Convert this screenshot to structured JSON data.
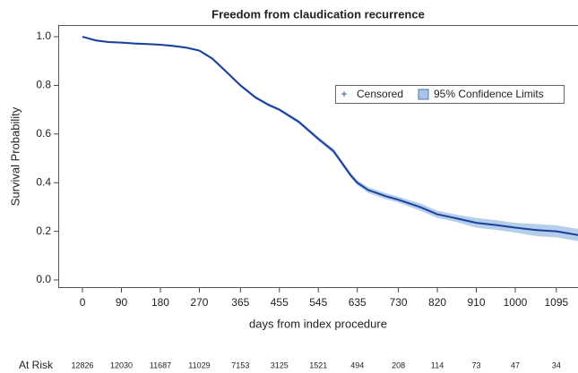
{
  "chart_data": {
    "type": "line",
    "title": "Freedom from claudication recurrence",
    "x_label": "days from index procedure",
    "y_label": "Survival Probability",
    "x": [
      0,
      30,
      60,
      90,
      120,
      150,
      180,
      210,
      240,
      270,
      300,
      330,
      365,
      400,
      430,
      455,
      500,
      545,
      580,
      600,
      620,
      635,
      660,
      700,
      730,
      780,
      820,
      860,
      910,
      960,
      1000,
      1050,
      1095,
      1145
    ],
    "values": [
      1,
      0.985,
      0.978,
      0.976,
      0.972,
      0.97,
      0.967,
      0.962,
      0.955,
      0.943,
      0.91,
      0.86,
      0.8,
      0.75,
      0.72,
      0.7,
      0.65,
      0.58,
      0.53,
      0.48,
      0.43,
      0.4,
      0.37,
      0.345,
      0.33,
      0.3,
      0.27,
      0.255,
      0.235,
      0.225,
      0.215,
      0.205,
      0.2,
      0.185
    ],
    "lower": [
      0.998,
      0.981,
      0.974,
      0.972,
      0.968,
      0.966,
      0.963,
      0.958,
      0.951,
      0.939,
      0.904,
      0.854,
      0.794,
      0.744,
      0.714,
      0.694,
      0.642,
      0.572,
      0.52,
      0.47,
      0.42,
      0.39,
      0.358,
      0.333,
      0.318,
      0.285,
      0.255,
      0.24,
      0.215,
      0.205,
      0.195,
      0.18,
      0.175,
      0.16
    ],
    "upper": [
      1,
      0.989,
      0.982,
      0.98,
      0.976,
      0.974,
      0.971,
      0.966,
      0.959,
      0.947,
      0.916,
      0.866,
      0.806,
      0.756,
      0.726,
      0.706,
      0.658,
      0.588,
      0.54,
      0.49,
      0.44,
      0.41,
      0.382,
      0.357,
      0.342,
      0.315,
      0.285,
      0.27,
      0.255,
      0.245,
      0.235,
      0.23,
      0.225,
      0.21
    ],
    "color": "#1b3f9c",
    "band_color": "#a8c5e6",
    "legend": [
      "Censored",
      "95% Confidence Limits"
    ],
    "xlim": [
      -56,
      1145
    ],
    "ylim": [
      -0.033,
      1.048
    ],
    "xticks": [
      0,
      90,
      180,
      270,
      365,
      455,
      545,
      635,
      730,
      820,
      910,
      1000,
      1095
    ],
    "yticks": [
      {
        "value": 0,
        "label": "0.0"
      },
      0.2,
      0.4,
      0.6,
      0.8,
      {
        "value": 1,
        "label": "1.0"
      }
    ],
    "at_risk_label": "At Risk",
    "at_risk": [
      12826,
      12030,
      11687,
      11029,
      7153,
      3125,
      1521,
      494,
      208,
      114,
      73,
      47,
      34
    ]
  }
}
